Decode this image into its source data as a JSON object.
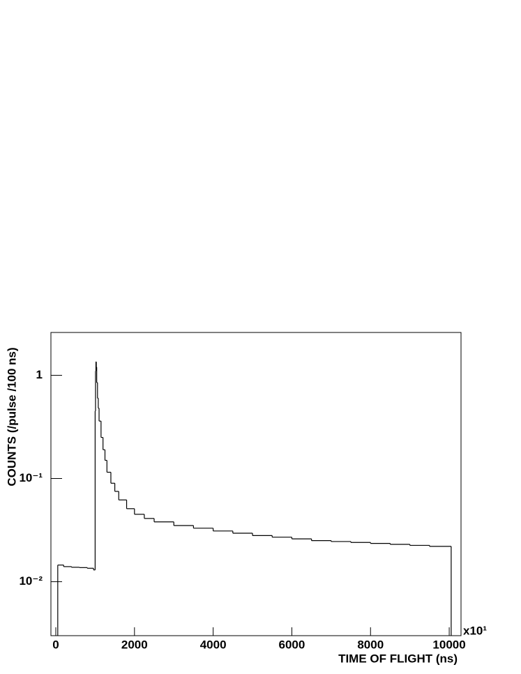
{
  "chart_data": {
    "type": "histogram",
    "y_label": "COUNTS (/pulse /100 ns)",
    "x_label": "TIME OF FLIGHT (ns)",
    "x_multiplier": "x10¹",
    "log_y": true,
    "color": "#000000",
    "xlim": [
      -124,
      10300
    ],
    "ylim": [
      0.003,
      2.6
    ],
    "xticks": [
      0,
      2000,
      4000,
      6000,
      8000,
      10000
    ],
    "yticks": [
      {
        "value": 0.01,
        "label": "10⁻²"
      },
      {
        "value": 0.1,
        "label": "10⁻¹"
      },
      1
    ],
    "bins": [
      50,
      200,
      400,
      600,
      800,
      960,
      1000,
      1010,
      1020,
      1030,
      1040,
      1060,
      1080,
      1100,
      1150,
      1200,
      1250,
      1300,
      1400,
      1500,
      1600,
      1800,
      2000,
      2250,
      2500,
      3000,
      3500,
      4000,
      4500,
      5000,
      5500,
      6000,
      6500,
      7000,
      7500,
      8000,
      8500,
      9000,
      9500,
      10050
    ],
    "counts": [
      0.0145,
      0.014,
      0.0138,
      0.0137,
      0.0135,
      0.013,
      0.45,
      1.1,
      1.35,
      1.2,
      0.85,
      0.6,
      0.48,
      0.36,
      0.25,
      0.19,
      0.15,
      0.115,
      0.09,
      0.075,
      0.062,
      0.051,
      0.045,
      0.041,
      0.038,
      0.035,
      0.033,
      0.031,
      0.0295,
      0.028,
      0.027,
      0.026,
      0.025,
      0.0245,
      0.024,
      0.0235,
      0.023,
      0.0225,
      0.022
    ]
  }
}
